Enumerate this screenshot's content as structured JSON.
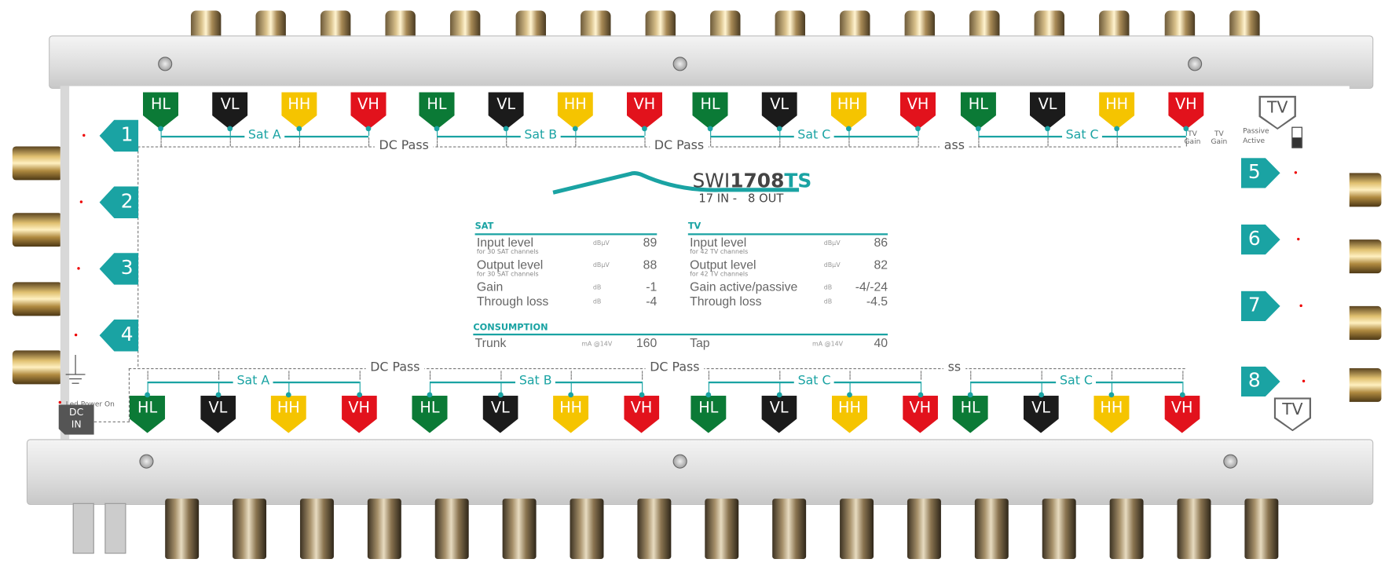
{
  "device": {
    "model_prefix": "SWI",
    "model_number": "1708",
    "model_suffix": "TS",
    "io": "17 IN -   8 OUT"
  },
  "colors": {
    "HL": "#0b7a36",
    "VL": "#1b1b1b",
    "HH": "#f5c400",
    "VH": "#e2121c",
    "accent": "#1aa3a3"
  },
  "top_groups": [
    {
      "sat": "Sat A",
      "ports": [
        "HL",
        "VL",
        "HH",
        "VH"
      ]
    },
    {
      "sat": "Sat B",
      "ports": [
        "HL",
        "VL",
        "HH",
        "VH"
      ]
    },
    {
      "sat": "Sat C",
      "ports": [
        "HL",
        "VL",
        "HH",
        "VH"
      ]
    },
    {
      "sat": "Sat C",
      "ports": [
        "HL",
        "VL",
        "HH",
        "VH"
      ]
    }
  ],
  "bottom_groups": [
    {
      "sat": "Sat A",
      "ports": [
        "HL",
        "VL",
        "HH",
        "VH"
      ]
    },
    {
      "sat": "Sat B",
      "ports": [
        "HL",
        "VL",
        "HH",
        "VH"
      ]
    },
    {
      "sat": "Sat C",
      "ports": [
        "HL",
        "VL",
        "HH",
        "VH"
      ]
    },
    {
      "sat": "Sat C",
      "ports": [
        "HL",
        "VL",
        "HH",
        "VH"
      ]
    }
  ],
  "dc_pass_top": [
    "DC Pass",
    "DC Pass",
    "ass"
  ],
  "dc_pass_bottom": [
    "DC Pass",
    "DC Pass",
    "ss"
  ],
  "outputs_left": [
    "1",
    "2",
    "3",
    "4"
  ],
  "outputs_right": [
    "5",
    "6",
    "7",
    "8"
  ],
  "tv_top": "TV",
  "tv_bottom": "TV",
  "tv_gain": {
    "label1": "TV",
    "label1b": "Gain",
    "label2": "TV",
    "label2b": "Gain",
    "passive": "Passive",
    "active": "Active",
    "state": "Active"
  },
  "led_power_on": "Led Power On",
  "dc_in": {
    "line1": "DC",
    "line2": "IN"
  },
  "sat_table": {
    "title": "SAT",
    "rows": [
      {
        "label": "Input level",
        "sub": "for 30 SAT channels",
        "unit": "dBµV",
        "value": "89"
      },
      {
        "label": "Output level",
        "sub": "for 30 SAT channels",
        "unit": "dBµV",
        "value": "88"
      },
      {
        "label": "Gain",
        "sub": "",
        "unit": "dB",
        "value": "-1"
      },
      {
        "label": "Through loss",
        "sub": "",
        "unit": "dB",
        "value": "-4"
      }
    ]
  },
  "tv_table": {
    "title": "TV",
    "rows": [
      {
        "label": "Input level",
        "sub": "for 42 TV channels",
        "unit": "dBµV",
        "value": "86"
      },
      {
        "label": "Output level",
        "sub": "for 42 TV channels",
        "unit": "dBµV",
        "value": "82"
      },
      {
        "label": "Gain active/passive",
        "sub": "",
        "unit": "dB",
        "value": "-4/-24"
      },
      {
        "label": "Through loss",
        "sub": "",
        "unit": "dB",
        "value": "-4.5"
      }
    ]
  },
  "consumption": {
    "title": "CONSUMPTION",
    "trunk": {
      "label": "Trunk",
      "unit": "mA @14V",
      "value": "160"
    },
    "tap": {
      "label": "Tap",
      "unit": "mA @14V",
      "value": "40"
    }
  }
}
